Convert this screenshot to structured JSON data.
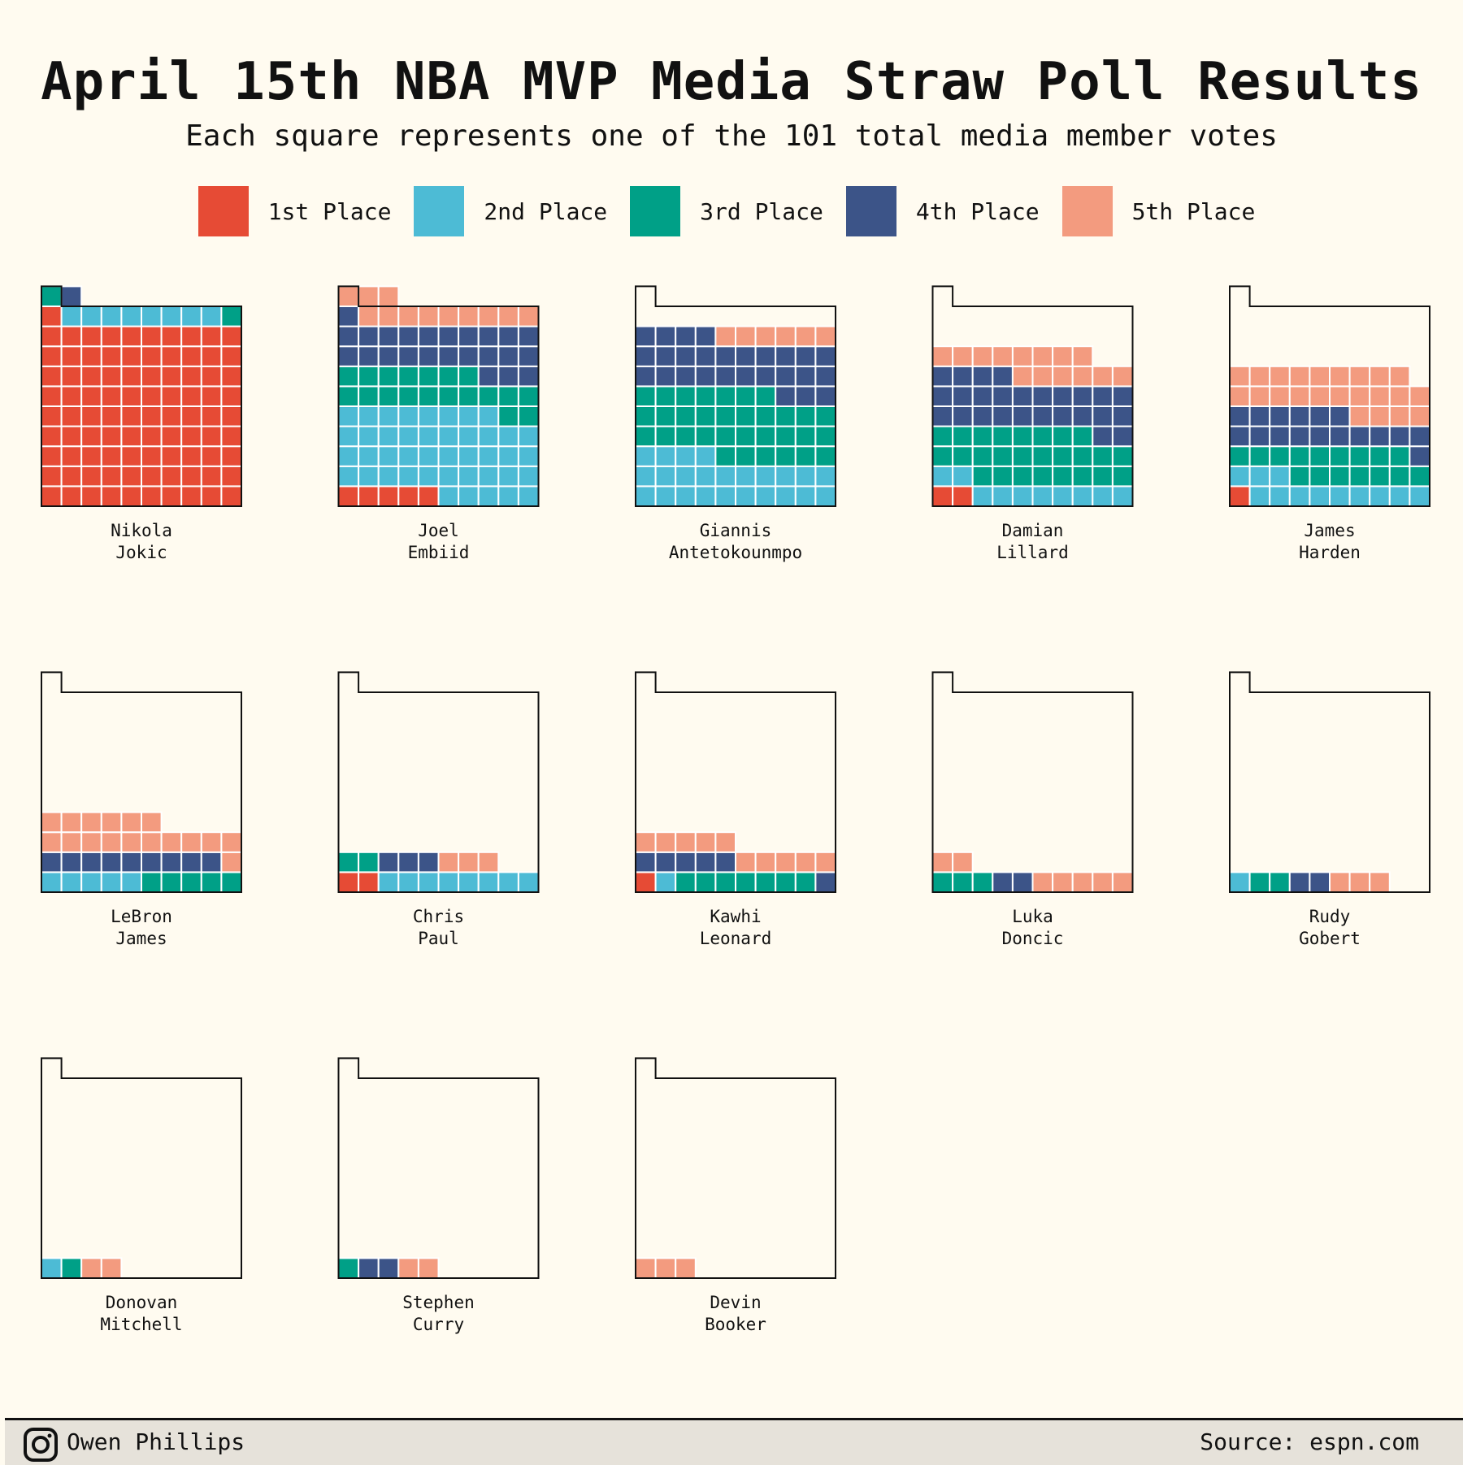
{
  "header": {
    "title": "April 15th NBA MVP Media Straw Poll Results",
    "subtitle": "Each square represents one of the 101 total media member votes"
  },
  "legend": [
    {
      "label": "1st Place",
      "color": "#e64b35"
    },
    {
      "label": "2nd Place",
      "color": "#4dbbd5"
    },
    {
      "label": "3rd Place",
      "color": "#00a087"
    },
    {
      "label": "4th Place",
      "color": "#3c5488"
    },
    {
      "label": "5th Place",
      "color": "#f39b7f"
    }
  ],
  "footer": {
    "author": "Owen Phillips",
    "source": "Source: espn.com",
    "icon": "instagram-icon"
  },
  "chart_data": {
    "type": "waffle",
    "total_votes": 101,
    "series": [
      "1st Place",
      "2nd Place",
      "3rd Place",
      "4th Place",
      "5th Place"
    ],
    "players": [
      {
        "first": "Nikola",
        "last": "Jokic",
        "votes": [
          91,
          8,
          2,
          1,
          0
        ]
      },
      {
        "first": "Joel",
        "last": "Embiid",
        "votes": [
          5,
          43,
          19,
          24,
          12
        ]
      },
      {
        "first": "Giannis",
        "last": "Antetokounmpo",
        "votes": [
          0,
          24,
          33,
          27,
          6
        ]
      },
      {
        "first": "Damian",
        "last": "Lillard",
        "votes": [
          2,
          10,
          26,
          26,
          14
        ]
      },
      {
        "first": "James",
        "last": "Harden",
        "votes": [
          1,
          12,
          16,
          17,
          23
        ]
      },
      {
        "first": "LeBron",
        "last": "James",
        "votes": [
          0,
          5,
          5,
          9,
          17
        ]
      },
      {
        "first": "Chris",
        "last": "Paul",
        "votes": [
          2,
          8,
          2,
          3,
          3
        ]
      },
      {
        "first": "Kawhi",
        "last": "Leonard",
        "votes": [
          1,
          1,
          7,
          6,
          10
        ]
      },
      {
        "first": "Luka",
        "last": "Doncic",
        "votes": [
          0,
          0,
          3,
          2,
          7
        ]
      },
      {
        "first": "Rudy",
        "last": "Gobert",
        "votes": [
          0,
          1,
          2,
          2,
          3
        ]
      },
      {
        "first": "Donovan",
        "last": "Mitchell",
        "votes": [
          0,
          1,
          1,
          0,
          2
        ]
      },
      {
        "first": "Stephen",
        "last": "Curry",
        "votes": [
          0,
          0,
          1,
          2,
          2
        ]
      },
      {
        "first": "Devin",
        "last": "Booker",
        "votes": [
          0,
          0,
          0,
          0,
          3
        ]
      }
    ]
  }
}
